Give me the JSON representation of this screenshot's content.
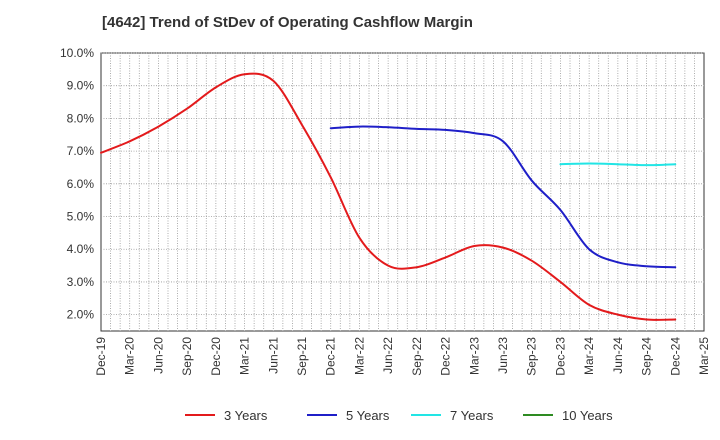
{
  "chart_data": {
    "type": "line",
    "title": "[4642]  Trend of StDev of Operating Cashflow Margin",
    "xlabel": "",
    "ylabel": "",
    "categories": [
      "Dec-19",
      "Mar-20",
      "Jun-20",
      "Sep-20",
      "Dec-20",
      "Mar-21",
      "Jun-21",
      "Sep-21",
      "Dec-21",
      "Mar-22",
      "Jun-22",
      "Sep-22",
      "Dec-22",
      "Mar-23",
      "Jun-23",
      "Sep-23",
      "Dec-23",
      "Mar-24",
      "Jun-24",
      "Sep-24",
      "Dec-24",
      "Mar-25"
    ],
    "y_ticks": [
      "10.0%",
      "9.0%",
      "8.0%",
      "7.0%",
      "6.0%",
      "5.0%",
      "4.0%",
      "3.0%",
      "2.0%"
    ],
    "ylim": [
      1.5,
      10.0
    ],
    "grid": true,
    "legend_position": "bottom",
    "series": [
      {
        "name": "3 Years",
        "color": "#e31a1c",
        "values": [
          6.95,
          7.3,
          7.75,
          8.3,
          8.95,
          9.35,
          9.15,
          7.8,
          6.2,
          4.35,
          3.5,
          3.45,
          3.75,
          4.1,
          4.05,
          3.65,
          3.0,
          2.3,
          2.0,
          1.85,
          1.85,
          null
        ]
      },
      {
        "name": "5 Years",
        "color": "#1f1fc8",
        "values": [
          null,
          null,
          null,
          null,
          null,
          null,
          null,
          null,
          7.7,
          7.75,
          7.73,
          7.68,
          7.65,
          7.55,
          7.3,
          6.1,
          5.2,
          4.0,
          3.6,
          3.48,
          3.45,
          null
        ]
      },
      {
        "name": "7 Years",
        "color": "#22e5e5",
        "values": [
          null,
          null,
          null,
          null,
          null,
          null,
          null,
          null,
          null,
          null,
          null,
          null,
          null,
          null,
          null,
          null,
          6.6,
          6.62,
          6.6,
          6.57,
          6.6,
          null
        ]
      },
      {
        "name": "10 Years",
        "color": "#2e8b22",
        "values": [
          null,
          null,
          null,
          null,
          null,
          null,
          null,
          null,
          null,
          null,
          null,
          null,
          null,
          null,
          null,
          null,
          null,
          null,
          null,
          null,
          null,
          null
        ]
      }
    ]
  }
}
